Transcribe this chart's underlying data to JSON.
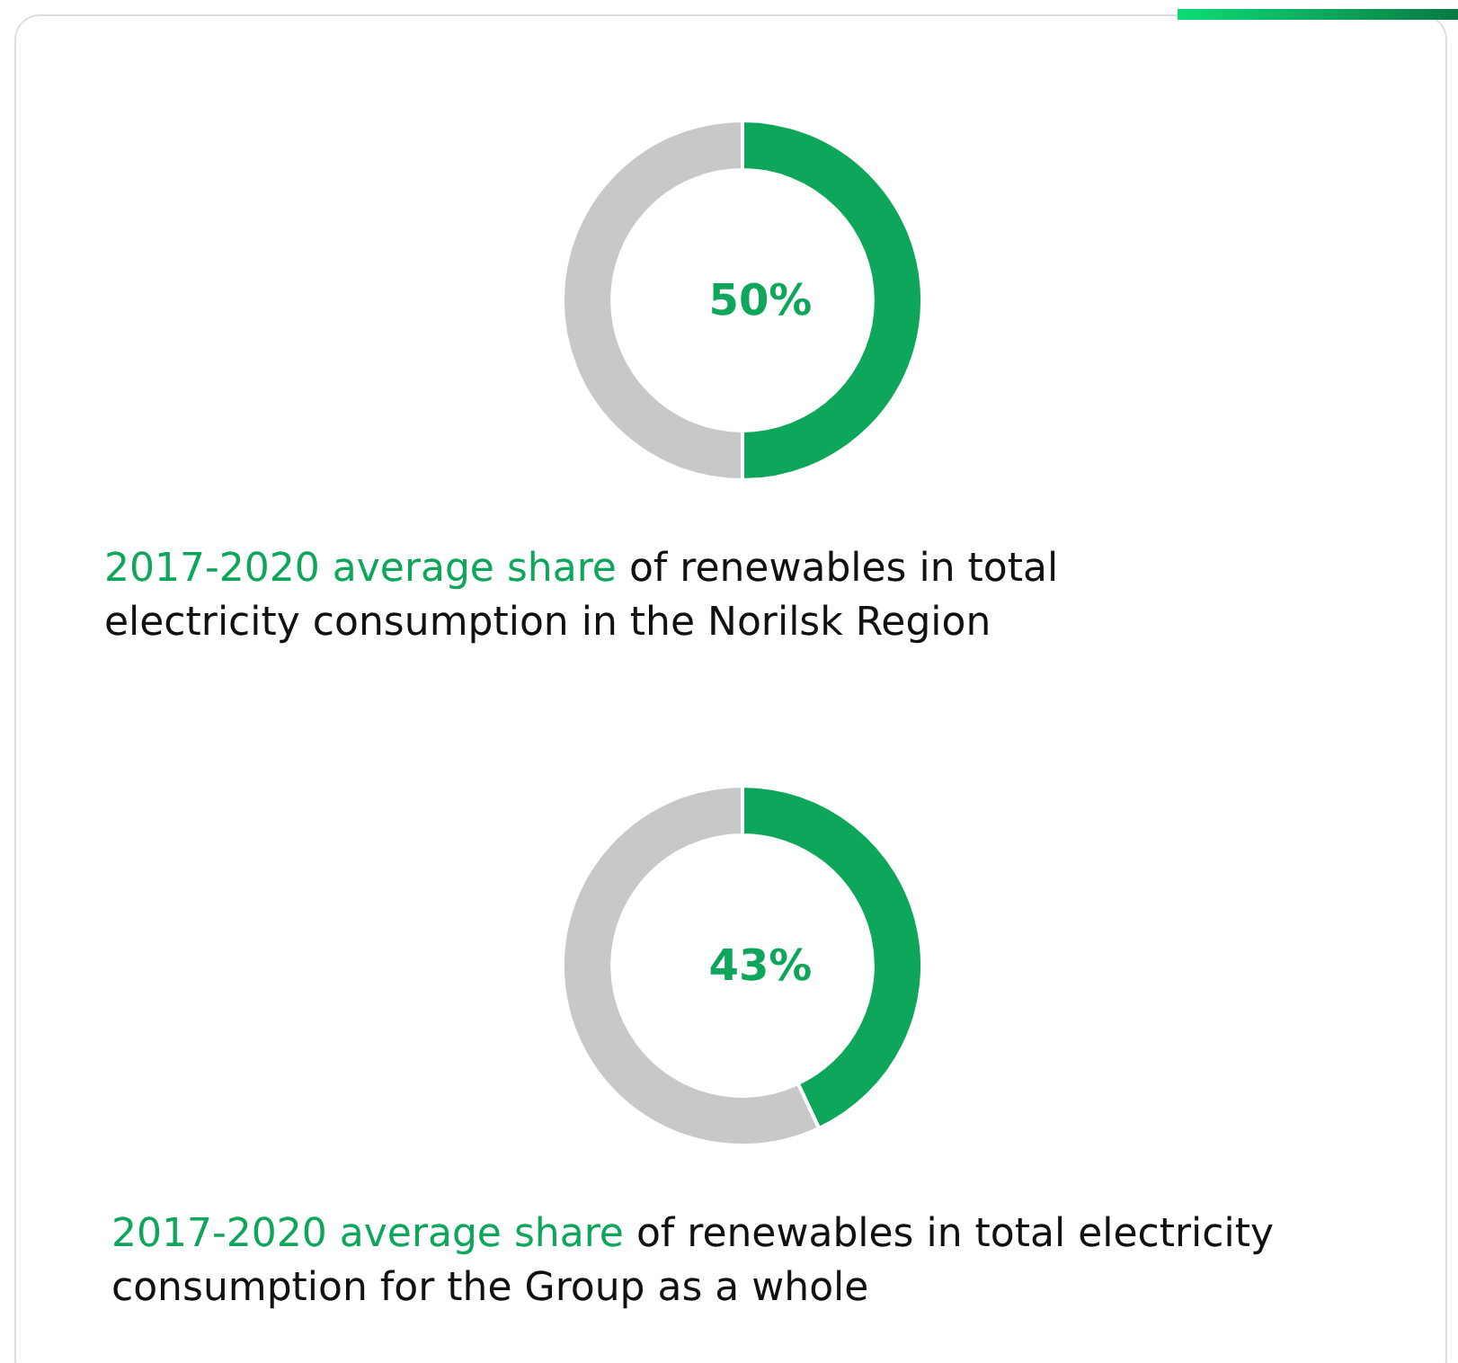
{
  "chart_data": [
    {
      "type": "donut",
      "categories": [
        null,
        null
      ],
      "values": [
        50,
        50
      ],
      "colors": [
        "#0ea65a",
        "#c8c8c8"
      ],
      "value_labels": [
        "50%",
        null
      ],
      "annotations": [
        "2017-2020 average share",
        "of renewables in total electricity consumption in the Norilsk Region"
      ]
    },
    {
      "type": "donut",
      "categories": [
        null,
        null
      ],
      "values": [
        43,
        57
      ],
      "colors": [
        "#0ea65a",
        "#c8c8c8"
      ],
      "value_labels": [
        "43%",
        null
      ],
      "annotations": [
        "2017-2020 average share",
        "of renewables in total electricity consumption for the Group as a whole"
      ]
    }
  ]
}
